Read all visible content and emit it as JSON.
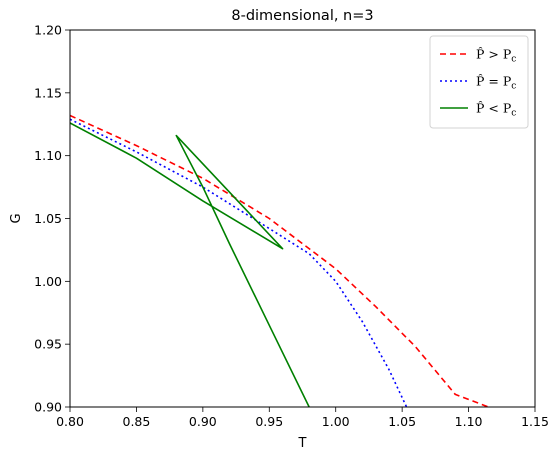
{
  "chart_data": {
    "type": "line",
    "title": "8-dimensional, n=3",
    "xlabel": "T",
    "ylabel": "G",
    "xlim": [
      0.8,
      1.15
    ],
    "ylim": [
      0.9,
      1.2
    ],
    "xticks": [
      "0.80",
      "0.85",
      "0.90",
      "0.95",
      "1.00",
      "1.05",
      "1.10",
      "1.15"
    ],
    "yticks": [
      "0.90",
      "0.95",
      "1.00",
      "1.05",
      "1.10",
      "1.15",
      "1.20"
    ],
    "grid": false,
    "legend_position": "top-right",
    "series": [
      {
        "name": "P̂ > P_c",
        "legend_main": "P̂ > P",
        "legend_sub": "c",
        "color": "#ff0000",
        "style": "dashed",
        "x": [
          0.8,
          0.85,
          0.9,
          0.95,
          1.0,
          1.03,
          1.06,
          1.09,
          1.12
        ],
        "y": [
          1.132,
          1.108,
          1.082,
          1.05,
          1.01,
          0.98,
          0.948,
          0.91,
          0.898
        ]
      },
      {
        "name": "P̂ = P_c",
        "legend_main": "P̂ = P",
        "legend_sub": "c",
        "color": "#0000ff",
        "style": "dotted",
        "x": [
          0.8,
          0.85,
          0.9,
          0.95,
          0.98,
          1.0,
          1.02,
          1.04,
          1.06,
          1.07
        ],
        "y": [
          1.129,
          1.103,
          1.075,
          1.042,
          1.022,
          1.0,
          0.968,
          0.93,
          0.885,
          0.9
        ]
      },
      {
        "name": "P̂ < P_c",
        "legend_main": "P̂ < P",
        "legend_sub": "c",
        "color": "#008000",
        "style": "solid",
        "x": [
          0.8,
          0.85,
          0.9,
          0.96,
          0.88,
          0.9,
          0.92,
          0.95,
          0.98
        ],
        "y": [
          1.126,
          1.098,
          1.064,
          1.026,
          1.116,
          1.075,
          1.03,
          0.965,
          0.9
        ]
      }
    ]
  }
}
